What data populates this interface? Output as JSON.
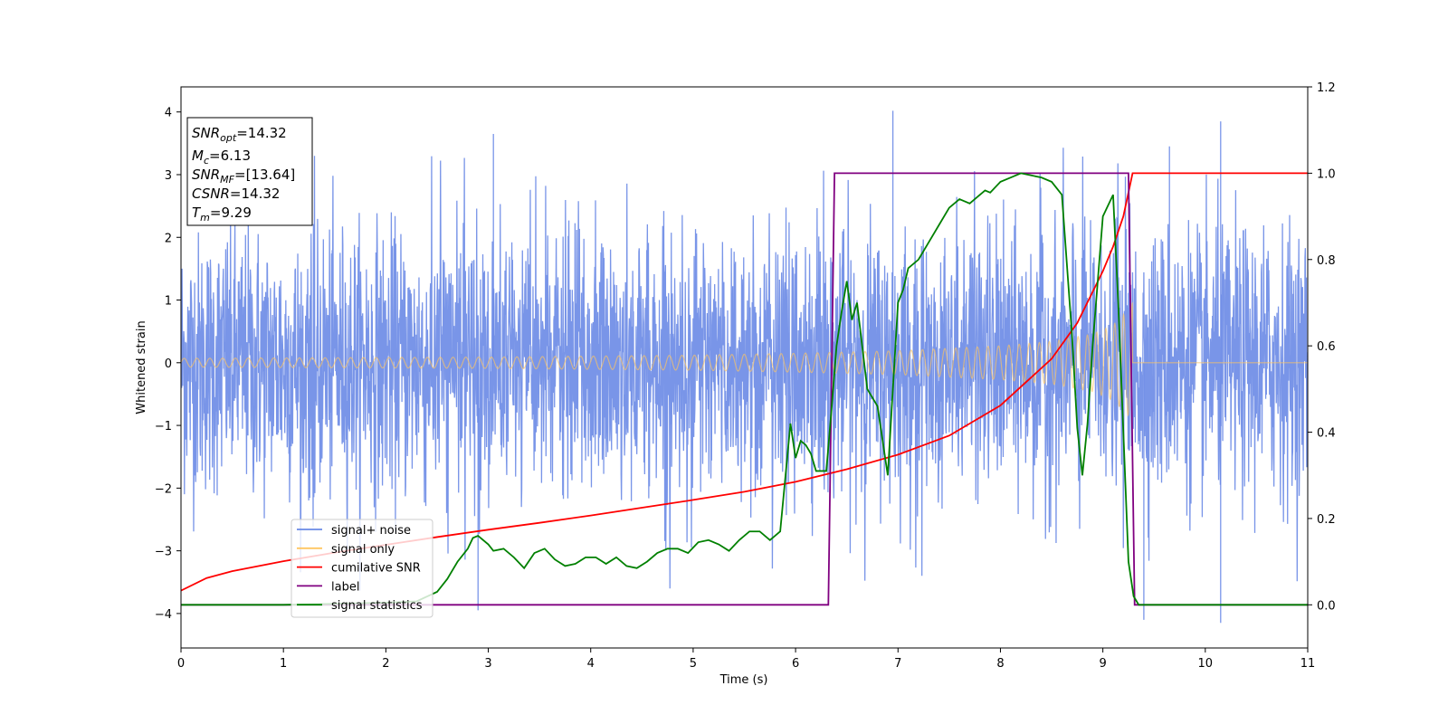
{
  "chart_data": {
    "type": "line",
    "xlabel": "Time (s)",
    "ylabel": "Whitened strain",
    "xlim": [
      0,
      11
    ],
    "ylim_left": [
      -4.55,
      4.4
    ],
    "ylim_right": [
      -0.1,
      1.2
    ],
    "x_ticks": [
      "0",
      "1",
      "2",
      "3",
      "4",
      "5",
      "6",
      "7",
      "8",
      "9",
      "10",
      "11"
    ],
    "y_ticks_left": [
      "−4",
      "−3",
      "−2",
      "−1",
      "0",
      "1",
      "2",
      "3",
      "4"
    ],
    "y_ticks_right": [
      "0.0",
      "0.2",
      "0.4",
      "0.6",
      "0.8",
      "1.0",
      "1.2"
    ],
    "legend_position": "lower-left",
    "series": [
      {
        "name": "signal+ noise",
        "axis": "left",
        "color": "#6a8ae6",
        "kind": "noise",
        "noise_std": 1.05,
        "typical_range": [
          -2.8,
          2.9
        ],
        "notable_peaks": [
          {
            "x": 3.05,
            "y": 3.65
          },
          {
            "x": 6.95,
            "y": 4.02
          },
          {
            "x": 9.65,
            "y": 3.45
          },
          {
            "x": 10.15,
            "y": 3.85
          },
          {
            "x": 2.9,
            "y": -3.95
          },
          {
            "x": 10.15,
            "y": -4.15
          },
          {
            "x": 9.4,
            "y": -4.1
          }
        ]
      },
      {
        "name": "signal only",
        "axis": "left",
        "color": "#ffc560",
        "kind": "chirp",
        "amplitude_envelope": [
          {
            "x": 0,
            "y": 0.07
          },
          {
            "x": 3,
            "y": 0.09
          },
          {
            "x": 5,
            "y": 0.12
          },
          {
            "x": 6,
            "y": 0.15
          },
          {
            "x": 7,
            "y": 0.19
          },
          {
            "x": 8,
            "y": 0.27
          },
          {
            "x": 8.5,
            "y": 0.34
          },
          {
            "x": 8.9,
            "y": 0.46
          },
          {
            "x": 9.1,
            "y": 0.6
          },
          {
            "x": 9.25,
            "y": 0.85
          },
          {
            "x": 9.29,
            "y": 0.95
          }
        ],
        "end_time": 9.29
      },
      {
        "name": "cumilative SNR",
        "axis": "right",
        "color": "#ff0000",
        "x": [
          0,
          0.25,
          0.5,
          1,
          1.5,
          2,
          2.5,
          3,
          3.5,
          4,
          4.5,
          5,
          5.5,
          6,
          6.5,
          7,
          7.5,
          8,
          8.5,
          8.75,
          9,
          9.1,
          9.2,
          9.29,
          11
        ],
        "y": [
          0.033,
          0.062,
          0.078,
          0.101,
          0.121,
          0.139,
          0.157,
          0.174,
          0.19,
          0.207,
          0.225,
          0.243,
          0.262,
          0.285,
          0.314,
          0.348,
          0.392,
          0.462,
          0.57,
          0.653,
          0.773,
          0.83,
          0.9,
          1.0,
          1.0
        ]
      },
      {
        "name": "label",
        "axis": "right",
        "color": "#800080",
        "x": [
          0,
          6.32,
          6.38,
          9.25,
          9.31,
          11
        ],
        "y": [
          0,
          0,
          1,
          1,
          0,
          0
        ]
      },
      {
        "name": "signal statistics",
        "axis": "right",
        "color": "#008000",
        "x": [
          0,
          1,
          2,
          2.3,
          2.5,
          2.6,
          2.7,
          2.8,
          2.85,
          2.9,
          3.0,
          3.05,
          3.15,
          3.25,
          3.35,
          3.45,
          3.55,
          3.65,
          3.75,
          3.85,
          3.95,
          4.05,
          4.15,
          4.25,
          4.35,
          4.45,
          4.55,
          4.65,
          4.75,
          4.85,
          4.95,
          5.05,
          5.15,
          5.25,
          5.35,
          5.45,
          5.55,
          5.65,
          5.75,
          5.85,
          5.95,
          6.0,
          6.05,
          6.1,
          6.15,
          6.2,
          6.25,
          6.3,
          6.35,
          6.4,
          6.45,
          6.5,
          6.55,
          6.6,
          6.7,
          6.8,
          6.9,
          7.0,
          7.05,
          7.1,
          7.2,
          7.3,
          7.4,
          7.5,
          7.6,
          7.7,
          7.8,
          7.85,
          7.9,
          8.0,
          8.1,
          8.2,
          8.3,
          8.4,
          8.5,
          8.6,
          8.7,
          8.75,
          8.8,
          8.85,
          8.9,
          9.0,
          9.1,
          9.15,
          9.25,
          9.3,
          9.35,
          9.4,
          9.5,
          11
        ],
        "y": [
          0.0,
          0.0,
          0.005,
          0.008,
          0.03,
          0.06,
          0.1,
          0.13,
          0.155,
          0.16,
          0.14,
          0.125,
          0.13,
          0.11,
          0.085,
          0.12,
          0.13,
          0.105,
          0.09,
          0.095,
          0.11,
          0.11,
          0.095,
          0.11,
          0.09,
          0.085,
          0.1,
          0.12,
          0.13,
          0.13,
          0.12,
          0.145,
          0.15,
          0.14,
          0.125,
          0.15,
          0.17,
          0.17,
          0.15,
          0.17,
          0.42,
          0.34,
          0.38,
          0.37,
          0.35,
          0.31,
          0.31,
          0.31,
          0.45,
          0.6,
          0.68,
          0.75,
          0.66,
          0.7,
          0.5,
          0.46,
          0.3,
          0.7,
          0.73,
          0.78,
          0.8,
          0.84,
          0.88,
          0.92,
          0.94,
          0.93,
          0.95,
          0.96,
          0.955,
          0.98,
          0.99,
          1.0,
          0.995,
          0.99,
          0.98,
          0.95,
          0.62,
          0.41,
          0.3,
          0.42,
          0.6,
          0.9,
          0.95,
          0.7,
          0.1,
          0.02,
          0.0,
          0.0,
          0.0,
          0.0
        ]
      }
    ],
    "annotations": {
      "info_box": [
        {
          "base": "SNR",
          "sub": "opt",
          "value": "=14.32"
        },
        {
          "base": "M",
          "sub": "c",
          "value": "=6.13"
        },
        {
          "base": "SNR",
          "sub": "MF",
          "value": "=[13.64]"
        },
        {
          "base": "CSNR",
          "sub": "",
          "value": "=14.32"
        },
        {
          "base": "T",
          "sub": "m",
          "value": "=9.29"
        }
      ]
    }
  }
}
